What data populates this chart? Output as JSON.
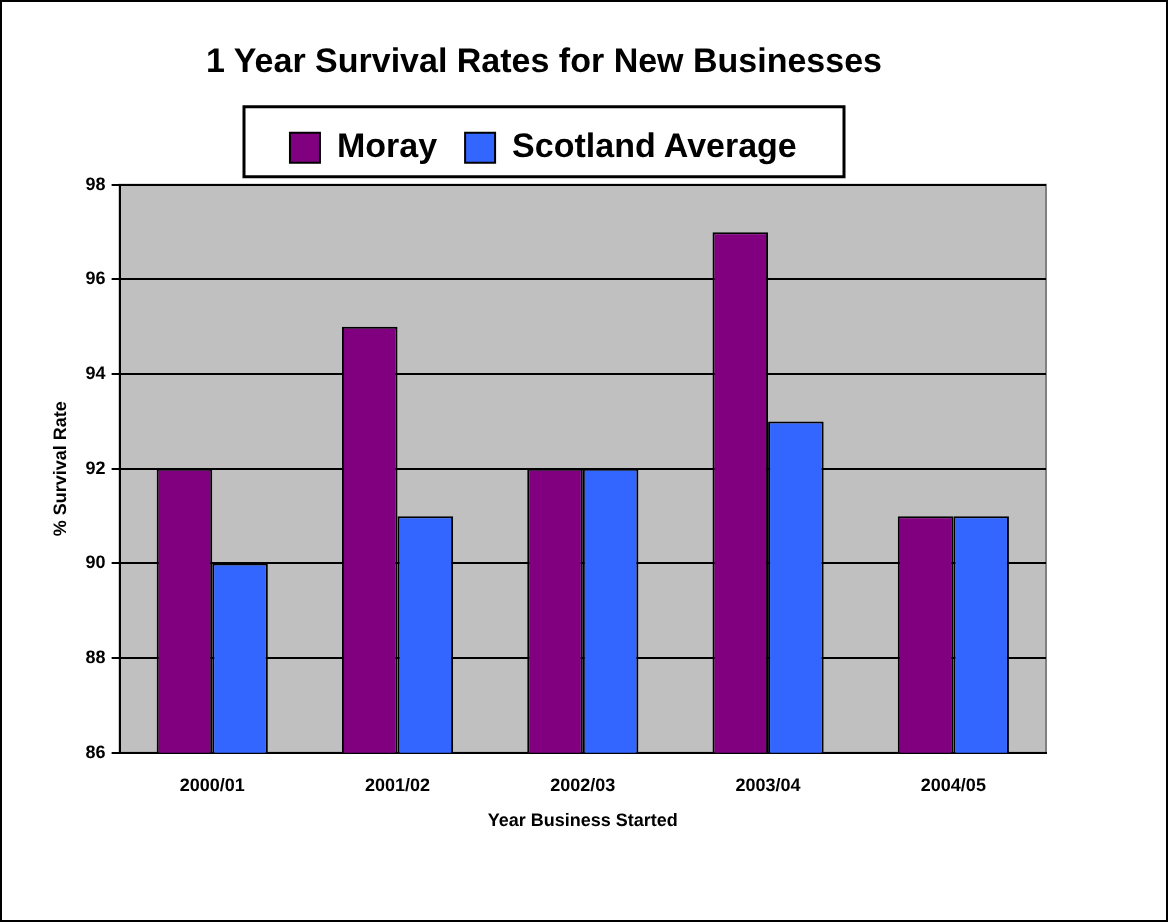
{
  "chart_data": {
    "type": "bar",
    "title": "1 Year Survival Rates for New Businesses",
    "xlabel": "Year Business Started",
    "ylabel": "% Survival Rate",
    "categories": [
      "2000/01",
      "2001/02",
      "2002/03",
      "2003/04",
      "2004/05"
    ],
    "series": [
      {
        "name": "Moray",
        "color": "#800080",
        "values": [
          92,
          95,
          92,
          97,
          91
        ]
      },
      {
        "name": "Scotland Average",
        "color": "#3366ff",
        "values": [
          90,
          91,
          92,
          93,
          91
        ]
      }
    ],
    "ylim": [
      86,
      98
    ],
    "yticks": [
      86,
      88,
      90,
      92,
      94,
      96,
      98
    ],
    "grid": "y",
    "legend": "top"
  }
}
